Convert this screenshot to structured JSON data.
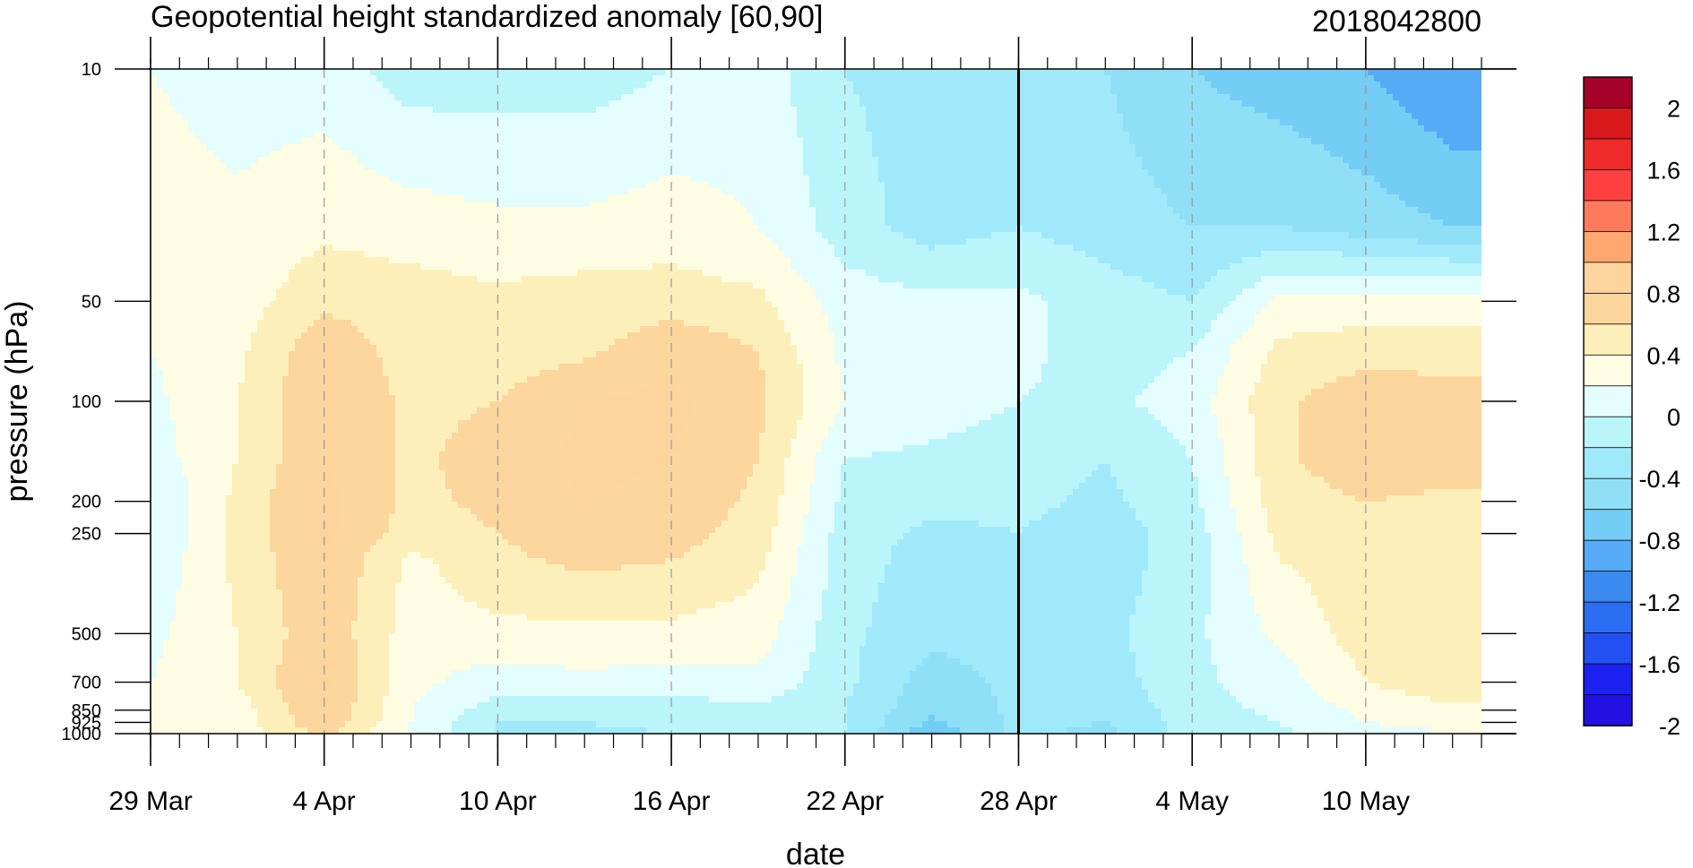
{
  "chart_data": {
    "type": "heatmap",
    "subtype": "filled-contour",
    "title": "Geopotential height standardized anomaly [60,90]",
    "right_title": "2018042800",
    "xlabel": "date",
    "ylabel": "pressure (hPa)",
    "x_tick_labels": [
      "29 Mar",
      "4 Apr",
      "10 Apr",
      "16 Apr",
      "22 Apr",
      "28 Apr",
      "4 May",
      "10 May"
    ],
    "x_tick_dates": [
      "2018-03-29",
      "2018-04-04",
      "2018-04-10",
      "2018-04-16",
      "2018-04-22",
      "2018-04-28",
      "2018-05-04",
      "2018-05-10"
    ],
    "x_range": [
      "2018-03-29",
      "2018-05-14"
    ],
    "y_tick_labels": [
      "10",
      "50",
      "100",
      "200",
      "250",
      "500",
      "700",
      "850",
      "925",
      "1000"
    ],
    "y_tick_values": [
      10,
      50,
      100,
      200,
      250,
      500,
      700,
      850,
      925,
      1000
    ],
    "y_range": [
      10,
      1000
    ],
    "y_scale": "log",
    "y_reversed": true,
    "marker_line_date": "2018-04-28",
    "grid": "dashed vertical lines at x ticks",
    "colorbar": {
      "placement": "right",
      "labels": [
        "2",
        "1.6",
        "1.2",
        "0.8",
        "0.4",
        "0",
        "-0.4",
        "-0.8",
        "-1.2",
        "-1.6",
        "-2"
      ],
      "label_values": [
        2,
        1.6,
        1.2,
        0.8,
        0.4,
        0,
        -0.4,
        -0.8,
        -1.2,
        -1.6,
        -2
      ],
      "levels": [
        -2.2,
        -2.0,
        -1.8,
        -1.6,
        -1.4,
        -1.2,
        -1.0,
        -0.8,
        -0.6,
        -0.4,
        -0.2,
        0.0,
        0.2,
        0.4,
        0.6,
        0.8,
        1.0,
        1.2,
        1.4,
        1.6,
        1.8,
        2.0,
        2.2
      ],
      "colors_top_to_bottom": [
        "#a50026",
        "#d7191c",
        "#ef2a2a",
        "#ff4040",
        "#ff7a5a",
        "#fea76f",
        "#fdd49d",
        "#fcd69d",
        "#fdefba",
        "#fefce3",
        "#e4fdfe",
        "#b9f5fb",
        "#a0e9fa",
        "#8fe0f7",
        "#73cdf5",
        "#56aaf6",
        "#3a8af0",
        "#2c6ef1",
        "#2350f2",
        "#1c20f0",
        "#2310e3"
      ]
    },
    "value_pressures": [
      10,
      30,
      50,
      70,
      100,
      150,
      200,
      250,
      300,
      500,
      700,
      850,
      925,
      1000
    ],
    "value_dates": [
      "2018-03-29",
      "2018-04-01",
      "2018-04-04",
      "2018-04-07",
      "2018-04-10",
      "2018-04-13",
      "2018-04-16",
      "2018-04-19",
      "2018-04-22",
      "2018-04-25",
      "2018-04-28",
      "2018-05-01",
      "2018-05-04",
      "2018-05-07",
      "2018-05-10",
      "2018-05-13"
    ],
    "values": [
      [
        0.0,
        -0.1,
        -0.1,
        -0.3,
        -0.3,
        -0.3,
        -0.2,
        -0.1,
        -0.4,
        -0.5,
        -0.5,
        -0.6,
        -0.8,
        -0.9,
        -1.0,
        -1.2
      ],
      [
        0.1,
        0.05,
        0.15,
        0.1,
        0.05,
        0.05,
        0.1,
        0.0,
        -0.3,
        -0.5,
        -0.4,
        -0.5,
        -0.6,
        -0.6,
        -0.7,
        -0.8
      ],
      [
        0.1,
        0.1,
        0.35,
        0.3,
        0.25,
        0.3,
        0.3,
        0.25,
        -0.1,
        -0.15,
        -0.15,
        -0.3,
        -0.4,
        0.05,
        0.1,
        0.1
      ],
      [
        0.0,
        0.15,
        0.55,
        0.3,
        0.3,
        0.35,
        0.55,
        0.4,
        -0.05,
        -0.1,
        -0.15,
        -0.3,
        -0.2,
        0.25,
        0.3,
        0.3
      ],
      [
        -0.05,
        0.2,
        0.6,
        0.35,
        0.4,
        0.6,
        0.65,
        0.45,
        0.0,
        -0.1,
        -0.2,
        -0.25,
        -0.1,
        0.35,
        0.55,
        0.5
      ],
      [
        -0.1,
        0.2,
        0.6,
        0.35,
        0.5,
        0.65,
        0.6,
        0.4,
        -0.2,
        -0.25,
        -0.3,
        -0.4,
        -0.2,
        0.35,
        0.55,
        0.5
      ],
      [
        -0.2,
        0.25,
        0.65,
        0.35,
        0.45,
        0.6,
        0.55,
        0.35,
        -0.25,
        -0.35,
        -0.35,
        -0.45,
        -0.25,
        0.3,
        0.4,
        0.35
      ],
      [
        -0.2,
        0.25,
        0.65,
        0.3,
        0.4,
        0.55,
        0.5,
        0.3,
        -0.3,
        -0.45,
        -0.4,
        -0.5,
        -0.3,
        0.25,
        0.35,
        0.35
      ],
      [
        -0.15,
        0.25,
        0.6,
        0.15,
        0.35,
        0.45,
        0.4,
        0.25,
        -0.3,
        -0.5,
        -0.45,
        -0.5,
        -0.3,
        0.2,
        0.3,
        0.3
      ],
      [
        -0.05,
        0.2,
        0.55,
        0.1,
        0.15,
        0.15,
        0.15,
        0.1,
        -0.35,
        -0.55,
        -0.5,
        -0.45,
        -0.25,
        0.05,
        0.3,
        0.35
      ],
      [
        0.0,
        0.2,
        0.65,
        0.05,
        -0.1,
        -0.05,
        -0.1,
        -0.05,
        -0.35,
        -0.7,
        -0.55,
        -0.5,
        -0.25,
        -0.1,
        0.2,
        0.35
      ],
      [
        0.0,
        0.1,
        0.6,
        0.0,
        -0.3,
        -0.3,
        -0.3,
        -0.25,
        -0.4,
        -0.75,
        -0.55,
        -0.55,
        -0.3,
        -0.15,
        0.05,
        0.15
      ],
      [
        0.0,
        0.1,
        0.55,
        0.0,
        -0.4,
        -0.4,
        -0.35,
        -0.3,
        -0.4,
        -0.85,
        -0.55,
        -0.6,
        -0.3,
        -0.2,
        0.0,
        0.05
      ],
      [
        0.0,
        0.05,
        0.45,
        -0.05,
        -0.4,
        -0.45,
        -0.4,
        -0.3,
        -0.4,
        -0.95,
        -0.55,
        -0.65,
        -0.3,
        -0.25,
        -0.05,
        0.0
      ]
    ]
  }
}
